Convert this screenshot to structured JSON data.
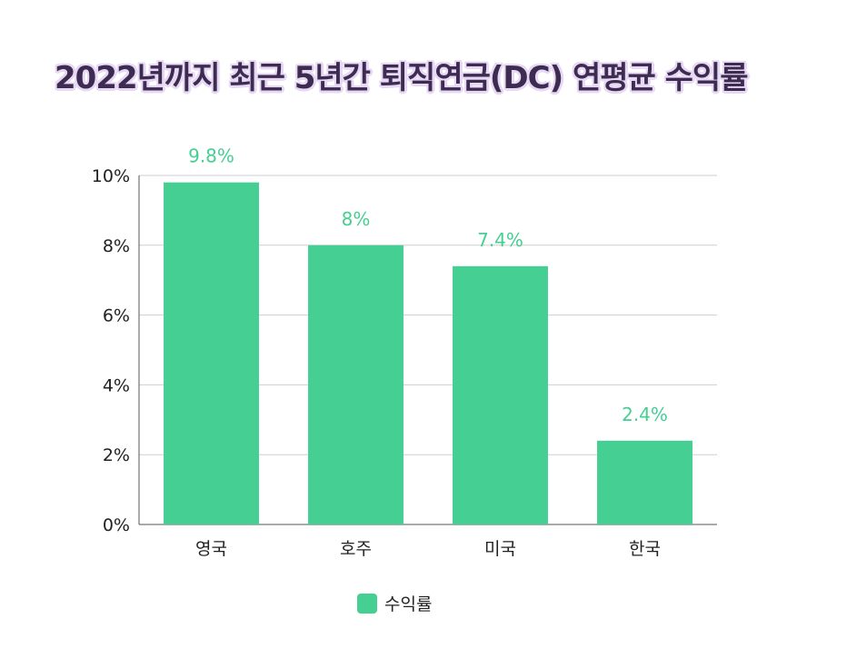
{
  "chart_data": {
    "type": "bar",
    "title": "2022년까지 최근 5년간 퇴직연금(DC) 연평균 수익률",
    "categories": [
      "영국",
      "호주",
      "미국",
      "한국"
    ],
    "series": [
      {
        "name": "수익률",
        "values": [
          9.8,
          8,
          7.4,
          2.4
        ],
        "color": "#45cf92"
      }
    ],
    "data_labels": [
      "9.8%",
      "8%",
      "7.4%",
      "2.4%"
    ],
    "y_ticks": [
      0,
      2,
      4,
      6,
      8,
      10
    ],
    "y_tick_labels": [
      "0%",
      "2%",
      "4%",
      "6%",
      "8%",
      "10%"
    ],
    "ylim": [
      0,
      10
    ],
    "xlabel": "",
    "ylabel": "",
    "grid": true,
    "legend_position": "bottom"
  }
}
